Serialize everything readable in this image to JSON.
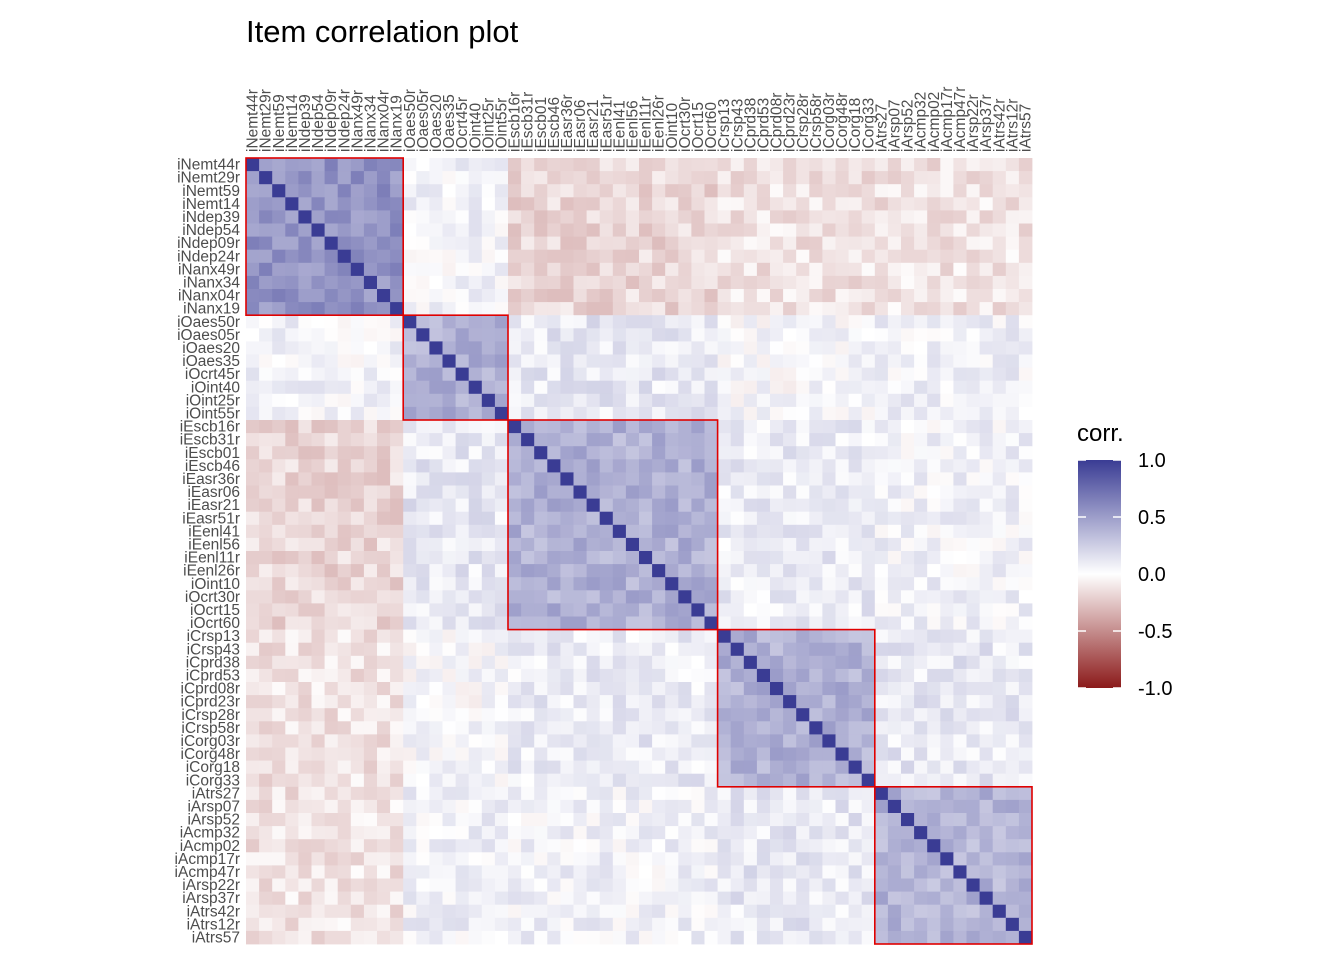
{
  "chart_data": {
    "type": "heatmap",
    "title": "Item correlation plot",
    "items": [
      "iNemt44r",
      "iNemt29r",
      "iNemt59",
      "iNemt14",
      "iNdep39",
      "iNdep54",
      "iNdep09r",
      "iNdep24r",
      "iNanx49r",
      "iNanx34",
      "iNanx04r",
      "iNanx19",
      "iOaes50r",
      "iOaes05r",
      "iOaes20",
      "iOaes35",
      "iOcrt45r",
      "iOint40",
      "iOint25r",
      "iOint55r",
      "iEscb16r",
      "iEscb31r",
      "iEscb01",
      "iEscb46",
      "iEasr36r",
      "iEasr06",
      "iEasr21",
      "iEasr51r",
      "iEenl41",
      "iEenl56",
      "iEenl11r",
      "iEenl26r",
      "iOint10",
      "iOcrt30r",
      "iOcrt15",
      "iOcrt60",
      "iCrsp13",
      "iCrsp43",
      "iCprd38",
      "iCprd53",
      "iCprd08r",
      "iCprd23r",
      "iCrsp28r",
      "iCrsp58r",
      "iCorg03r",
      "iCorg48r",
      "iCorg18",
      "iCorg33",
      "iAtrs27",
      "iArsp07",
      "iArsp52",
      "iAcmp32",
      "iAcmp02",
      "iAcmp17r",
      "iAcmp47r",
      "iArsp22r",
      "iArsp37r",
      "iAtrs42r",
      "iAtrs12r",
      "iAtrs57"
    ],
    "clusters": [
      {
        "start": 0,
        "end": 11
      },
      {
        "start": 12,
        "end": 19
      },
      {
        "start": 20,
        "end": 35
      },
      {
        "start": 36,
        "end": 47
      },
      {
        "start": 48,
        "end": 59
      }
    ],
    "block_means": [
      [
        0.55,
        0.05,
        -0.18,
        -0.13,
        -0.12
      ],
      [
        0.05,
        0.4,
        0.12,
        0.02,
        0.07
      ],
      [
        -0.18,
        0.12,
        0.4,
        0.1,
        0.06
      ],
      [
        -0.13,
        0.02,
        0.1,
        0.4,
        0.12
      ],
      [
        -0.12,
        0.07,
        0.06,
        0.12,
        0.38
      ]
    ],
    "diagonal": 1.0,
    "legend": {
      "title": "corr.",
      "ticks": [
        "1.0",
        "0.5",
        "0.0",
        "-0.5",
        "-1.0"
      ],
      "values": [
        1.0,
        0.5,
        0.0,
        -0.5,
        -1.0
      ],
      "placement": "right"
    },
    "colors": {
      "positive": "#3a3c94",
      "zero": "#ffffff",
      "negative": "#8b1a1a",
      "cluster_box": "#e00000"
    },
    "xlim": [
      -1,
      1
    ],
    "grid": false
  }
}
